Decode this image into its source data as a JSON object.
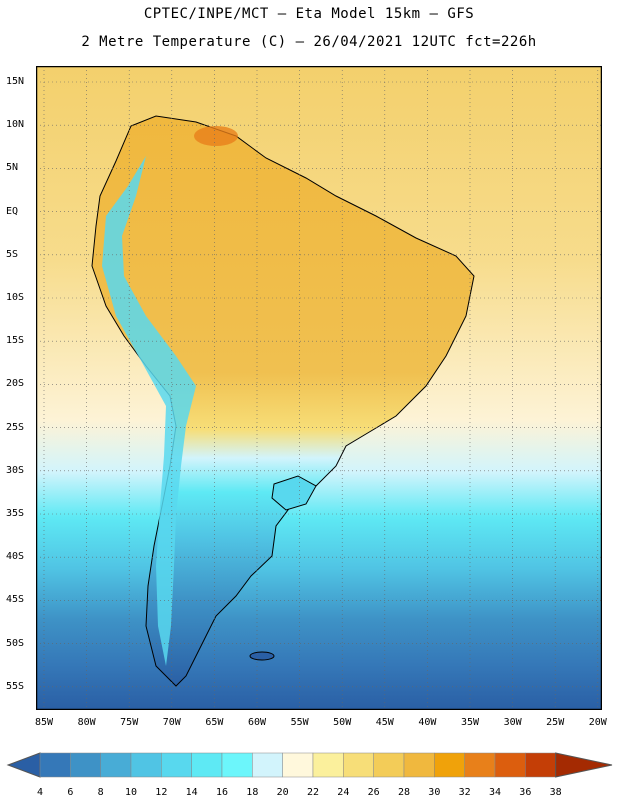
{
  "header": {
    "line1": "CPTEC/INPE/MCT –  Eta Model 15km – GFS",
    "line2": "2 Metre Temperature (C) – 26/04/2021 12UTC fct=226h"
  },
  "axes": {
    "lat_labels": [
      "15N",
      "10N",
      "5N",
      "EQ",
      "5S",
      "10S",
      "15S",
      "20S",
      "25S",
      "30S",
      "35S",
      "40S",
      "45S",
      "50S",
      "55S"
    ],
    "lon_labels": [
      "85W",
      "80W",
      "75W",
      "70W",
      "65W",
      "60W",
      "55W",
      "50W",
      "45W",
      "40W",
      "35W",
      "30W",
      "25W",
      "20W"
    ]
  },
  "colorbar": {
    "labels": [
      "4",
      "6",
      "8",
      "10",
      "12",
      "14",
      "16",
      "18",
      "20",
      "22",
      "24",
      "26",
      "28",
      "30",
      "32",
      "34",
      "36",
      "38"
    ],
    "colors": [
      "#2a5fa5",
      "#3578b8",
      "#3e92c6",
      "#48acd6",
      "#50c4e4",
      "#58d8ee",
      "#5ee9f4",
      "#6cf6fb",
      "#d2f4fc",
      "#fff8dc",
      "#fbf09c",
      "#f7de78",
      "#f3cc58",
      "#f0b83e",
      "#f0a20a",
      "#e8801a",
      "#dc5e0e",
      "#c43e06",
      "#a42a02"
    ]
  },
  "legend_colors": {
    "ocean_tropical": "#f6d880",
    "ocean_subtropical": "#fdf5da",
    "ocean_mid": "#58d8ee",
    "ocean_south": "#3a7fc0",
    "land_warm": "#f0c050",
    "andes": "#50c4e4",
    "patagonia": "#3a78b8"
  }
}
